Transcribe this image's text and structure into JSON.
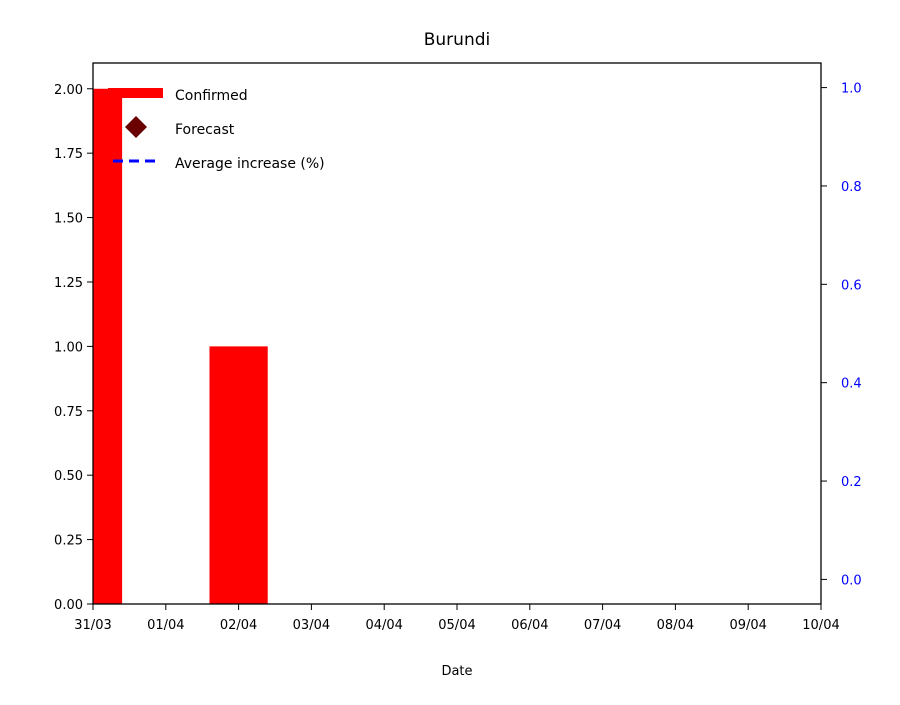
{
  "chart_data": {
    "type": "bar",
    "title": "Burundi",
    "xlabel": "Date",
    "ylabel": "",
    "x_ticks": [
      "31/03",
      "01/04",
      "02/04",
      "03/04",
      "04/04",
      "05/04",
      "06/04",
      "07/04",
      "08/04",
      "09/04",
      "10/04"
    ],
    "xlim": [
      "31/03",
      "10/04"
    ],
    "ylim": [
      0,
      2.1
    ],
    "y_ticks": [
      "0.00",
      "0.25",
      "0.50",
      "0.75",
      "1.00",
      "1.25",
      "1.50",
      "1.75",
      "2.00"
    ],
    "y2lim": [
      -0.05,
      1.05
    ],
    "y2_ticks": [
      "0.0",
      "0.2",
      "0.4",
      "0.6",
      "0.8",
      "1.0"
    ],
    "series": [
      {
        "name": "Confirmed",
        "kind": "bar",
        "color": "#ff0000",
        "points": [
          {
            "date": "31/03",
            "value": 2
          },
          {
            "date": "02/04",
            "value": 1
          }
        ]
      },
      {
        "name": "Forecast",
        "kind": "marker",
        "marker": "diamond",
        "color": "#6b0000",
        "points": []
      },
      {
        "name": "Average increase (%)",
        "kind": "line",
        "style": "dashed",
        "axis": "right",
        "color": "#0000ff",
        "points": []
      }
    ],
    "legend": {
      "position": "upper-left",
      "entries": [
        "Confirmed",
        "Forecast",
        "Average increase (%)"
      ]
    },
    "grid": false,
    "right_axis_color": "#0000ff"
  }
}
